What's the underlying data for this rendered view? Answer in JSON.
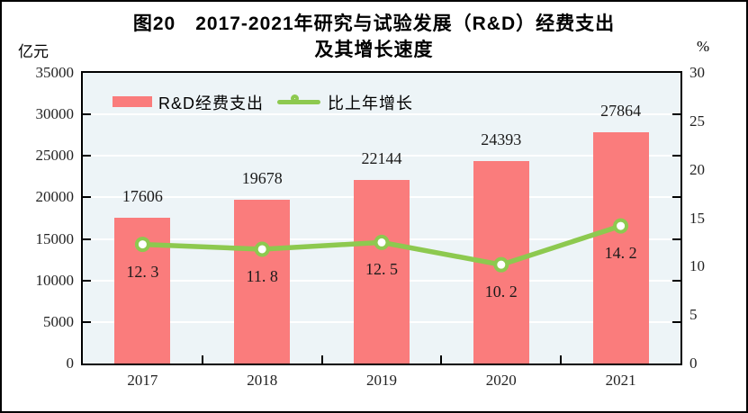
{
  "figure": {
    "title_line1": "图20　2017-2021年研究与试验发展（R&D）经费支出",
    "title_line2": "及其增长速度",
    "left_axis_unit": "亿元",
    "right_axis_unit": "%"
  },
  "legend": {
    "bar_label": "R&D经费支出",
    "line_label": "比上年增长"
  },
  "chart_data": {
    "type": "bar+line combo",
    "categories": [
      "2017",
      "2018",
      "2019",
      "2020",
      "2021"
    ],
    "series": [
      {
        "name": "R&D经费支出",
        "type": "bar",
        "axis": "left",
        "values": [
          17606,
          19678,
          22144,
          24393,
          27864
        ],
        "value_labels": [
          "17606",
          "19678",
          "22144",
          "24393",
          "27864"
        ]
      },
      {
        "name": "比上年增长",
        "type": "line",
        "axis": "right",
        "values": [
          12.3,
          11.8,
          12.5,
          10.2,
          14.2
        ],
        "value_labels": [
          "12. 3",
          "11. 8",
          "12. 5",
          "10. 2",
          "14. 2"
        ]
      }
    ],
    "left_axis": {
      "unit": "亿元",
      "range": [
        0,
        35000
      ],
      "tick_step": 5000,
      "tick_labels": [
        "0",
        "5000",
        "10000",
        "15000",
        "20000",
        "25000",
        "30000",
        "35000"
      ]
    },
    "right_axis": {
      "unit": "%",
      "range": [
        0,
        30
      ],
      "tick_step": 5,
      "tick_labels": [
        "0",
        "5",
        "10",
        "15",
        "20",
        "25",
        "30"
      ]
    },
    "grid": true,
    "legend_position": "top-left-inside",
    "title": "图20　2017-2021年研究与试验发展（R&D）经费支出及其增长速度"
  },
  "colors": {
    "bar": "#fa7c7c",
    "line": "#8dc94f",
    "marker_fill": "#ffffff",
    "plot_bg": "#edf4f7",
    "grid": "#ffffff",
    "frame": "#000000"
  }
}
